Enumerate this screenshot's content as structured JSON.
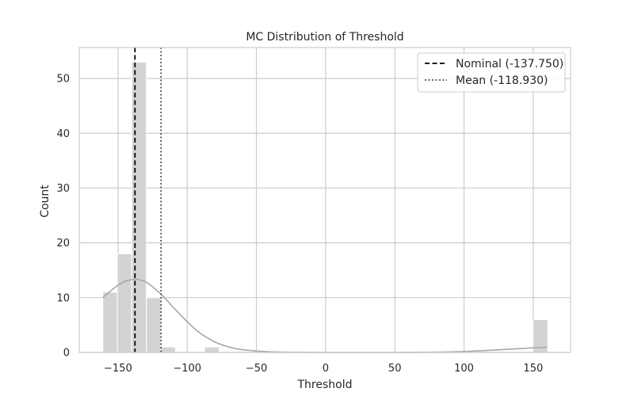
{
  "chart_data": {
    "type": "histogram",
    "title": "MC Distribution of Threshold",
    "xlabel": "Threshold",
    "ylabel": "Count",
    "xlim": [
      -178,
      177
    ],
    "ylim": [
      0,
      55.65
    ],
    "xticks": [
      -150,
      -100,
      -50,
      0,
      50,
      100,
      150
    ],
    "xtick_labels": [
      "−150",
      "−100",
      "−50",
      "0",
      "50",
      "100",
      "150"
    ],
    "yticks": [
      0,
      10,
      20,
      30,
      40,
      50
    ],
    "ytick_labels": [
      "0",
      "10",
      "20",
      "30",
      "40",
      "50"
    ],
    "grid": true,
    "legend_position": "top-right",
    "bar_color": "#d3d3d3",
    "kde_color": "#a8a8a8",
    "bins": [
      {
        "start": -161,
        "end": -150.5,
        "count": 11
      },
      {
        "start": -150.5,
        "end": -140,
        "count": 18
      },
      {
        "start": -140,
        "end": -129.5,
        "count": 53
      },
      {
        "start": -129.5,
        "end": -119,
        "count": 10
      },
      {
        "start": -119,
        "end": -108.5,
        "count": 1
      },
      {
        "start": -108.5,
        "end": -98,
        "count": 0
      },
      {
        "start": -98,
        "end": -87.5,
        "count": 0
      },
      {
        "start": -87.5,
        "end": -77,
        "count": 1
      },
      {
        "start": 150,
        "end": 160.5,
        "count": 6
      }
    ],
    "kde": {
      "x": [
        -161,
        -155,
        -150,
        -145,
        -140,
        -137,
        -135,
        -130,
        -125,
        -120,
        -115,
        -110,
        -105,
        -100,
        -95,
        -90,
        -85,
        -80,
        -75,
        -70,
        -65,
        -60,
        -50,
        -40,
        -30,
        -20,
        -10,
        0,
        10,
        20,
        30,
        40,
        50,
        60,
        70,
        80,
        90,
        100,
        110,
        120,
        130,
        140,
        150,
        160
      ],
      "y": [
        10.0,
        11.3,
        12.3,
        13.0,
        13.3,
        13.4,
        13.3,
        12.9,
        12.0,
        10.9,
        9.6,
        8.2,
        6.9,
        5.6,
        4.4,
        3.4,
        2.6,
        1.9,
        1.4,
        1.0,
        0.7,
        0.5,
        0.25,
        0.12,
        0.05,
        0.02,
        0.01,
        0.0,
        0.0,
        0.0,
        0.0,
        0.0,
        0.0,
        0.01,
        0.02,
        0.05,
        0.1,
        0.18,
        0.28,
        0.4,
        0.55,
        0.7,
        0.85,
        0.93
      ]
    },
    "lines": [
      {
        "label": "Nominal (-137.750)",
        "x": -137.75,
        "style": "dashed",
        "color": "#000000"
      },
      {
        "label": "Mean (-118.930)",
        "x": -118.93,
        "style": "dotted",
        "color": "#555555"
      }
    ]
  }
}
